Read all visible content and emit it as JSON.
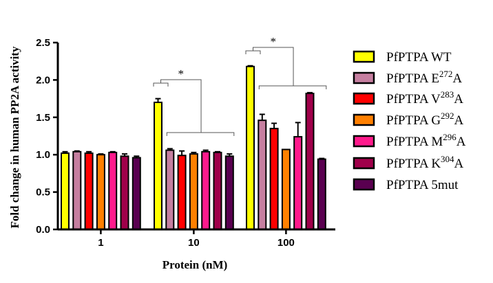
{
  "chart_data": {
    "type": "bar",
    "title": "",
    "xlabel": "Protein (nM)",
    "ylabel": "Fold change in human PP2A activity",
    "ylim": [
      0,
      2.5
    ],
    "yticks": [
      "0.0",
      "0.5",
      "1.0",
      "1.5",
      "2.0",
      "2.5"
    ],
    "categories": [
      "1",
      "10",
      "100"
    ],
    "legend_position": "right",
    "series": [
      {
        "name": "PfPTPA WT",
        "prefix": "PfPTPA WT",
        "sup": "",
        "suffix": "",
        "color": "#ffff00",
        "values": [
          1.02,
          1.7,
          2.18
        ],
        "errors": [
          0.02,
          0.05,
          0.01
        ]
      },
      {
        "name": "PfPTPA E272A",
        "prefix": "PfPTPA E",
        "sup": "272",
        "suffix": "A",
        "color": "#c67fa0",
        "values": [
          1.04,
          1.06,
          1.46
        ],
        "errors": [
          0.01,
          0.02,
          0.08
        ]
      },
      {
        "name": "PfPTPA V283A",
        "prefix": "PfPTPA V",
        "sup": "283",
        "suffix": "A",
        "color": "#ff0000",
        "values": [
          1.02,
          0.99,
          1.35
        ],
        "errors": [
          0.02,
          0.06,
          0.07
        ]
      },
      {
        "name": "PfPTPA G292A",
        "prefix": "PfPTPA G",
        "sup": "292",
        "suffix": "A",
        "color": "#ff8000",
        "values": [
          1.0,
          1.01,
          1.07
        ],
        "errors": [
          0.01,
          0.02,
          0.0
        ]
      },
      {
        "name": "PfPTPA M296A",
        "prefix": "PfPTPA M",
        "sup": "296",
        "suffix": "A",
        "color": "#ff1a8c",
        "values": [
          1.03,
          1.04,
          1.24
        ],
        "errors": [
          0.01,
          0.02,
          0.19
        ]
      },
      {
        "name": "PfPTPA K304A",
        "prefix": "PfPTPA K",
        "sup": "304",
        "suffix": "A",
        "color": "#a0004a",
        "values": [
          0.98,
          1.03,
          1.82
        ],
        "errors": [
          0.03,
          0.01,
          0.01
        ]
      },
      {
        "name": "PfPTPA 5mut",
        "prefix": "PfPTPA 5mut",
        "sup": "",
        "suffix": "",
        "color": "#5a0050",
        "values": [
          0.96,
          0.98,
          0.94
        ],
        "errors": [
          0.02,
          0.03,
          0.01
        ]
      }
    ],
    "annotations": [
      {
        "text": "*",
        "group": "10",
        "comparison": "WT vs mutants"
      },
      {
        "text": "*",
        "group": "100",
        "comparison": "WT vs mutants"
      }
    ]
  }
}
